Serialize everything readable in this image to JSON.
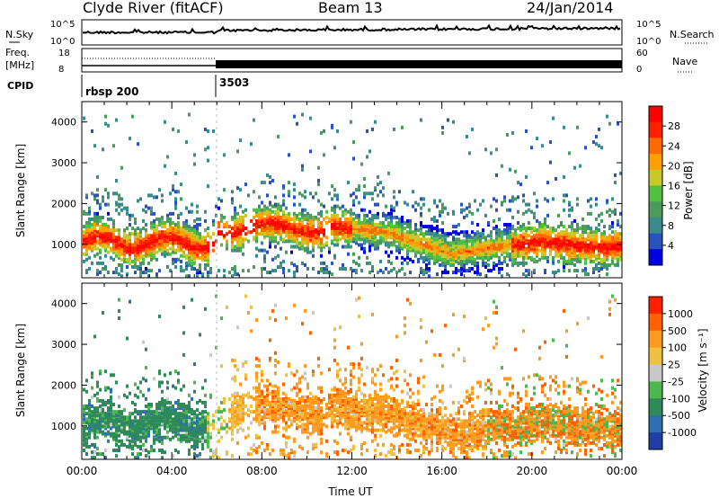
{
  "header": {
    "station": "Clyde River (fitACF)",
    "beam": "Beam 13",
    "date": "24/Jan/2014"
  },
  "top_panels": {
    "nsky_label": "N.Sky",
    "nsky_ticks": [
      "10^5",
      "10^0"
    ],
    "nsearch_label": "N.Search",
    "freq_label": "Freq.",
    "freq_unit": "[MHz]",
    "freq_ticks": [
      "18",
      "8"
    ],
    "nave_ticks": [
      "60",
      "0"
    ],
    "nave_label": "Nave",
    "cpid_label": "CPID",
    "cpid_segments": [
      {
        "name": "rbsp 200",
        "start_hour": 0
      },
      {
        "name": "3503",
        "start_hour": 6
      }
    ]
  },
  "chart_data": [
    {
      "type": "heatmap",
      "parameter": "power",
      "ylabel": "Slant Range [km]",
      "xlabel": "",
      "x_range_hours": [
        0,
        24
      ],
      "ylim": [
        180,
        4500
      ],
      "yticks": [
        "1000",
        "2000",
        "3000",
        "4000"
      ],
      "colorbar_label": "Power [dB]",
      "colorbar_ticks": [
        "28",
        "24",
        "20",
        "16",
        "12",
        "8",
        "4"
      ],
      "colorscale": [
        "#0000e0",
        "#2a52be",
        "#3a8c8c",
        "#4c9a5c",
        "#50c040",
        "#c8c828",
        "#ffa000",
        "#ff6a00",
        "#ff2000",
        "#ff0000"
      ]
    },
    {
      "type": "heatmap",
      "parameter": "velocity",
      "ylabel": "Slant Range [km]",
      "xlabel": "Time UT",
      "x_range_hours": [
        0,
        24
      ],
      "ylim": [
        180,
        4500
      ],
      "yticks": [
        "1000",
        "2000",
        "3000",
        "4000"
      ],
      "xticks": [
        "00:00",
        "04:00",
        "08:00",
        "12:00",
        "16:00",
        "20:00",
        "00:00"
      ],
      "colorbar_label": "Velocity [m s⁻¹]",
      "colorbar_ticks": [
        "1000",
        "500",
        "100",
        "25",
        "-25",
        "-100",
        "-500",
        "-1000"
      ],
      "colorscale": [
        "#1f3fa6",
        "#2f6eb0",
        "#2f8a5a",
        "#4db84d",
        "#c8c8c8",
        "#f0c040",
        "#ff9a20",
        "#ff6000",
        "#ff2000"
      ]
    }
  ]
}
